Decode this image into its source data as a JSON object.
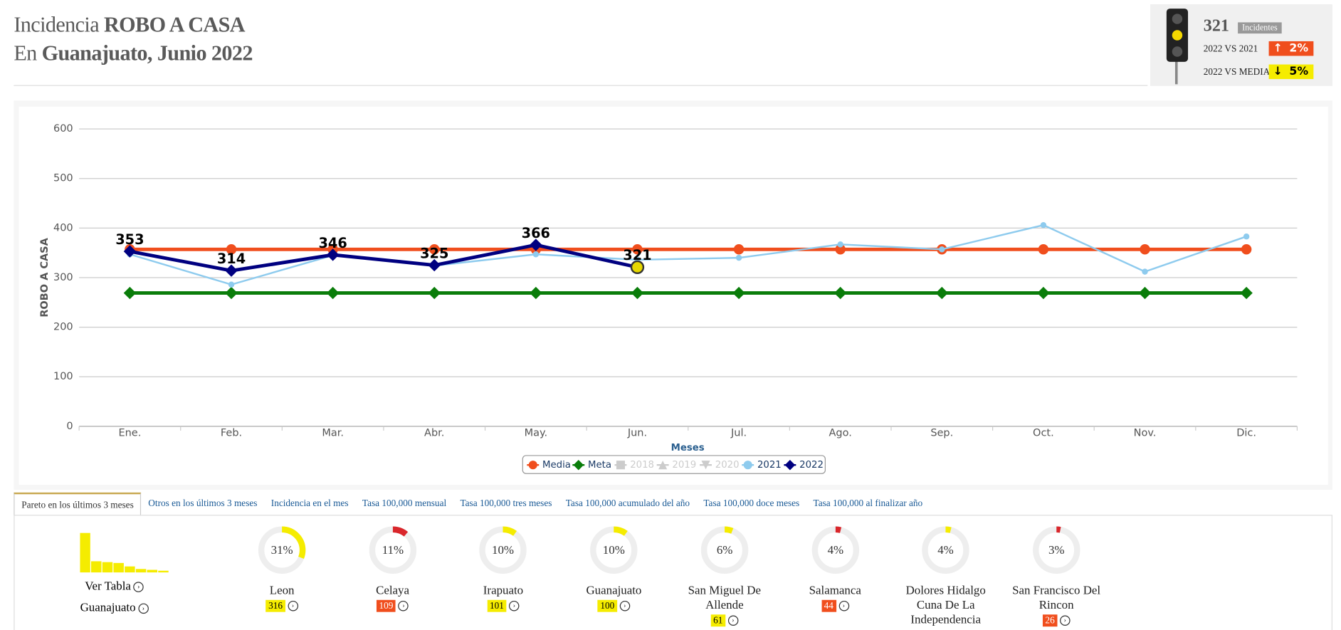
{
  "header": {
    "title_prefix": "Incidencia",
    "title_bold": "ROBO A CASA",
    "subtitle_prefix": "En",
    "subtitle_bold": "Guanajuato, Junio 2022"
  },
  "kpi": {
    "value": 321,
    "value_tag": "Incidentes",
    "rows": [
      {
        "label": "2022 VS 2021",
        "change": "2%",
        "direction": "up"
      },
      {
        "label": "2022 VS MEDIA",
        "change": "5%",
        "direction": "down"
      }
    ]
  },
  "chart_data": {
    "type": "line",
    "y_label": "ROBO A CASA",
    "x_label": "Meses",
    "categories": [
      "Ene.",
      "Feb.",
      "Mar.",
      "Abr.",
      "May.",
      "Jun.",
      "Jul.",
      "Ago.",
      "Sep.",
      "Oct.",
      "Nov.",
      "Dic."
    ],
    "ylim": [
      0,
      600
    ],
    "yticks": [
      0,
      100,
      200,
      300,
      400,
      500,
      600
    ],
    "grid": true,
    "series": [
      {
        "name": "Media",
        "color": "#f04e1d",
        "marker": "circle",
        "values": [
          357,
          357,
          357,
          357,
          357,
          357,
          357,
          357,
          357,
          357,
          357,
          357
        ]
      },
      {
        "name": "Meta",
        "color": "#0a7d0a",
        "marker": "diamond",
        "values": [
          269,
          269,
          269,
          269,
          269,
          269,
          269,
          269,
          269,
          269,
          269,
          269
        ]
      },
      {
        "name": "2018",
        "color": "#cccccc",
        "marker": "square",
        "hidden": true,
        "values": [
          null,
          null,
          null,
          null,
          null,
          null,
          null,
          null,
          null,
          null,
          null,
          null
        ]
      },
      {
        "name": "2019",
        "color": "#cccccc",
        "marker": "triangle",
        "hidden": true,
        "values": [
          null,
          null,
          null,
          null,
          null,
          null,
          null,
          null,
          null,
          null,
          null,
          null
        ]
      },
      {
        "name": "2020",
        "color": "#cccccc",
        "marker": "triangle-down",
        "hidden": true,
        "values": [
          null,
          null,
          null,
          null,
          null,
          null,
          null,
          null,
          null,
          null,
          null,
          null
        ]
      },
      {
        "name": "2021",
        "color": "#8ecbee",
        "marker": "circle",
        "values": [
          347,
          286,
          345,
          324,
          347,
          336,
          340,
          367,
          357,
          406,
          312,
          383
        ]
      },
      {
        "name": "2022",
        "color": "#000080",
        "marker": "diamond",
        "data_labels": true,
        "values": [
          353,
          314,
          346,
          325,
          366,
          321,
          null,
          null,
          null,
          null,
          null,
          null
        ]
      }
    ]
  },
  "tabs": {
    "active": 0,
    "items": [
      "Pareto en los últimos 3 meses",
      "Otros en los últimos 3 meses",
      "Incidencia en el mes",
      "Tasa 100,000 mensual",
      "Tasa 100,000 tres meses",
      "Tasa 100,000 acumulado del año",
      "Tasa 100,000 doce meses",
      "Tasa 100,000 al finalizar año"
    ]
  },
  "pareto": {
    "table_link": "Ver Tabla",
    "state": "Guanajuato",
    "items": [
      {
        "name": "Leon",
        "pct": 31,
        "pct_label": "31%",
        "count": 316,
        "color": "#f5ec00",
        "badge_color": "#f5ec00"
      },
      {
        "name": "Celaya",
        "pct": 11,
        "pct_label": "11%",
        "count": 109,
        "color": "#d9262b",
        "badge_color": "#f04e1d"
      },
      {
        "name": "Irapuato",
        "pct": 10,
        "pct_label": "10%",
        "count": 101,
        "color": "#f5ec00",
        "badge_color": "#f5ec00"
      },
      {
        "name": "Guanajuato",
        "pct": 10,
        "pct_label": "10%",
        "count": 100,
        "color": "#f5ec00",
        "badge_color": "#f5ec00"
      },
      {
        "name": "San Miguel De Allende",
        "pct": 6,
        "pct_label": "6%",
        "count": 61,
        "color": "#f5ec00",
        "badge_color": "#f5ec00"
      },
      {
        "name": "Salamanca",
        "pct": 4,
        "pct_label": "4%",
        "count": 44,
        "color": "#d9262b",
        "badge_color": "#f04e1d"
      },
      {
        "name": "Dolores Hidalgo Cuna De La Independencia",
        "pct": 4,
        "pct_label": "4%",
        "color": "#f5ec00"
      },
      {
        "name": "San Francisco Del Rincon",
        "pct": 3,
        "pct_label": "3%",
        "count": 26,
        "color": "#d9262b",
        "badge_color": "#f04e1d"
      }
    ]
  }
}
